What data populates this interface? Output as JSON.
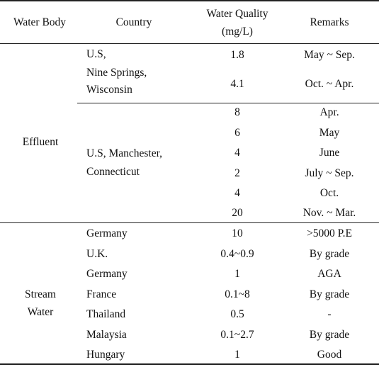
{
  "header": {
    "water_body": "Water  Body",
    "country": "Country",
    "water_quality_line1": "Water  Quality",
    "water_quality_line2": "(mg/L)",
    "remarks": "Remarks"
  },
  "sections": [
    {
      "water_body_lines": [
        "Effluent"
      ],
      "groups": [
        {
          "country_lines": [
            "U.S,",
            "Nine  Springs,",
            "Wisconsin"
          ],
          "rows": [
            {
              "quality": "1.8",
              "remark": "May ~ Sep."
            },
            {
              "quality": "4.1",
              "remark": "Oct. ~ Apr."
            }
          ]
        },
        {
          "country_lines": [
            "U.S,  Manchester,",
            "Connecticut"
          ],
          "rows": [
            {
              "quality": "8",
              "remark": "Apr."
            },
            {
              "quality": "6",
              "remark": "May"
            },
            {
              "quality": "4",
              "remark": "June"
            },
            {
              "quality": "2",
              "remark": "July ~ Sep."
            },
            {
              "quality": "4",
              "remark": "Oct."
            },
            {
              "quality": "20",
              "remark": "Nov. ~ Mar."
            }
          ]
        }
      ]
    },
    {
      "water_body_lines": [
        "Stream",
        "Water"
      ],
      "rows": [
        {
          "country": "Germany",
          "quality": "10",
          "remark": ">5000  P.E"
        },
        {
          "country": "U.K.",
          "quality": "0.4~0.9",
          "remark": "By  grade"
        },
        {
          "country": "Germany",
          "quality": "1",
          "remark": "AGA"
        },
        {
          "country": "France",
          "quality": "0.1~8",
          "remark": "By  grade"
        },
        {
          "country": "Thailand",
          "quality": "0.5",
          "remark": "-"
        },
        {
          "country": "Malaysia",
          "quality": "0.1~2.7",
          "remark": "By  grade"
        },
        {
          "country": "Hungary",
          "quality": "1",
          "remark": "Good"
        }
      ]
    }
  ]
}
